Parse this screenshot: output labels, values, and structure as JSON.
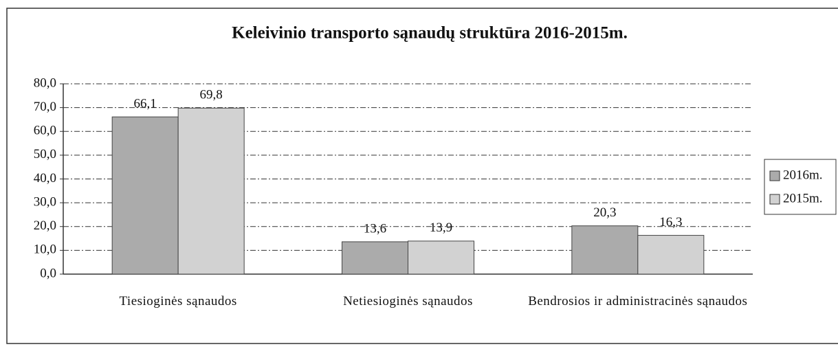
{
  "chart_data": {
    "type": "bar",
    "title": "Keleivinio transporto sąnaudų struktūra 2016-2015m.",
    "categories": [
      "Tiesioginės sąnaudos",
      "Netiesioginės sąnaudos",
      "Bendrosios ir administracinės sąnaudos"
    ],
    "series": [
      {
        "name": "2016m.",
        "color": "#ababab",
        "values": [
          66.1,
          13.6,
          20.3
        ],
        "value_labels": [
          "66,1",
          "13,6",
          "20,3"
        ]
      },
      {
        "name": "2015m.",
        "color": "#d2d2d2",
        "values": [
          69.8,
          13.9,
          16.3
        ],
        "value_labels": [
          "69,8",
          "13,9",
          "16,3"
        ]
      }
    ],
    "ylim": [
      0,
      80
    ],
    "yticks": [
      {
        "value": 0,
        "label": "0,0"
      },
      {
        "value": 10,
        "label": "10,0"
      },
      {
        "value": 20,
        "label": "20,0"
      },
      {
        "value": 30,
        "label": "30,0"
      },
      {
        "value": 40,
        "label": "40,0"
      },
      {
        "value": 50,
        "label": "50,0"
      },
      {
        "value": 60,
        "label": "60,0"
      },
      {
        "value": 70,
        "label": "70,0"
      },
      {
        "value": 80,
        "label": "80,0"
      }
    ],
    "grid": true,
    "legend": "right"
  }
}
